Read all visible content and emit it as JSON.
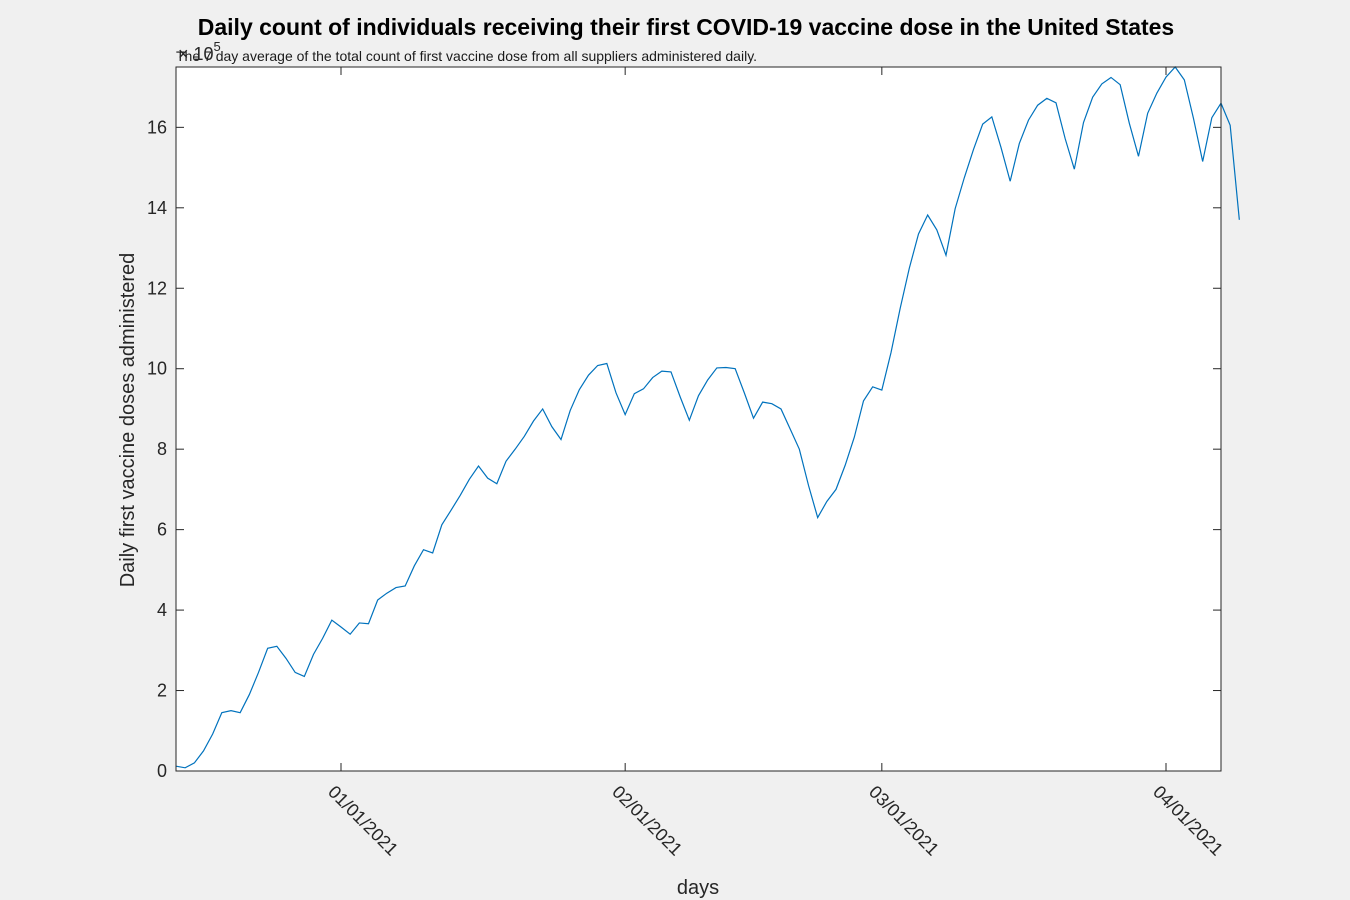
{
  "chart_data": {
    "type": "line",
    "title": "Daily count of individuals receiving their first COVID-19 vaccine dose in the United States",
    "subtitle": "The 7 day average of the total count of first vaccine dose from all suppliers administered daily.",
    "xlabel": "days",
    "ylabel": "Daily first vaccine doses administered",
    "y_exponent_label": "× 10",
    "y_exponent_power": "5",
    "x_range": [
      "2020-12-14",
      "2021-04-07"
    ],
    "ylim": [
      0,
      17.5
    ],
    "y_ticks": [
      0,
      2,
      4,
      6,
      8,
      10,
      12,
      14,
      16
    ],
    "y_tick_labels": [
      "0",
      "2",
      "4",
      "6",
      "8",
      "10",
      "12",
      "14",
      "16"
    ],
    "x_ticks": [
      "2021-01-01",
      "2021-02-01",
      "2021-03-01",
      "2021-04-01"
    ],
    "x_tick_labels": [
      "01/01/2021",
      "02/01/2021",
      "03/01/2021",
      "04/01/2021"
    ],
    "grid": false,
    "line_color": "#0072bd",
    "series": [
      {
        "start_date": "2020-12-14",
        "values": [
          0.12,
          0.08,
          0.2,
          0.5,
          0.92,
          1.45,
          1.5,
          1.45,
          1.9,
          2.45,
          3.05,
          3.1,
          2.8,
          2.45,
          2.35,
          2.9,
          3.3,
          3.75,
          3.58,
          3.4,
          3.68,
          3.66,
          4.25,
          4.42,
          4.56,
          4.6,
          5.1,
          5.5,
          5.42,
          6.12,
          6.48,
          6.85,
          7.25,
          7.58,
          7.28,
          7.14,
          7.7,
          8.0,
          8.32,
          8.7,
          9.0,
          8.56,
          8.24,
          8.96,
          9.48,
          9.84,
          10.08,
          10.13,
          9.4,
          8.86,
          9.38,
          9.5,
          9.78,
          9.94,
          9.92,
          9.3,
          8.72,
          9.33,
          9.72,
          10.02,
          10.03,
          10.0,
          9.4,
          8.77,
          9.17,
          9.13,
          9.0,
          8.5,
          8.0,
          7.1,
          6.3,
          6.7,
          7.0,
          7.6,
          8.3,
          9.2,
          9.55,
          9.47,
          10.4,
          11.5,
          12.5,
          13.35,
          13.82,
          13.45,
          12.82,
          13.98,
          14.75,
          15.45,
          16.08,
          16.26,
          15.5,
          14.66,
          15.6,
          16.18,
          16.55,
          16.72,
          16.61,
          15.72,
          14.96,
          16.12,
          16.75,
          17.08,
          17.24,
          17.06,
          16.1,
          15.28,
          16.35,
          16.85,
          17.25,
          17.5,
          17.18,
          16.22,
          15.15,
          16.24,
          16.6,
          16.05,
          13.7
        ]
      }
    ]
  }
}
